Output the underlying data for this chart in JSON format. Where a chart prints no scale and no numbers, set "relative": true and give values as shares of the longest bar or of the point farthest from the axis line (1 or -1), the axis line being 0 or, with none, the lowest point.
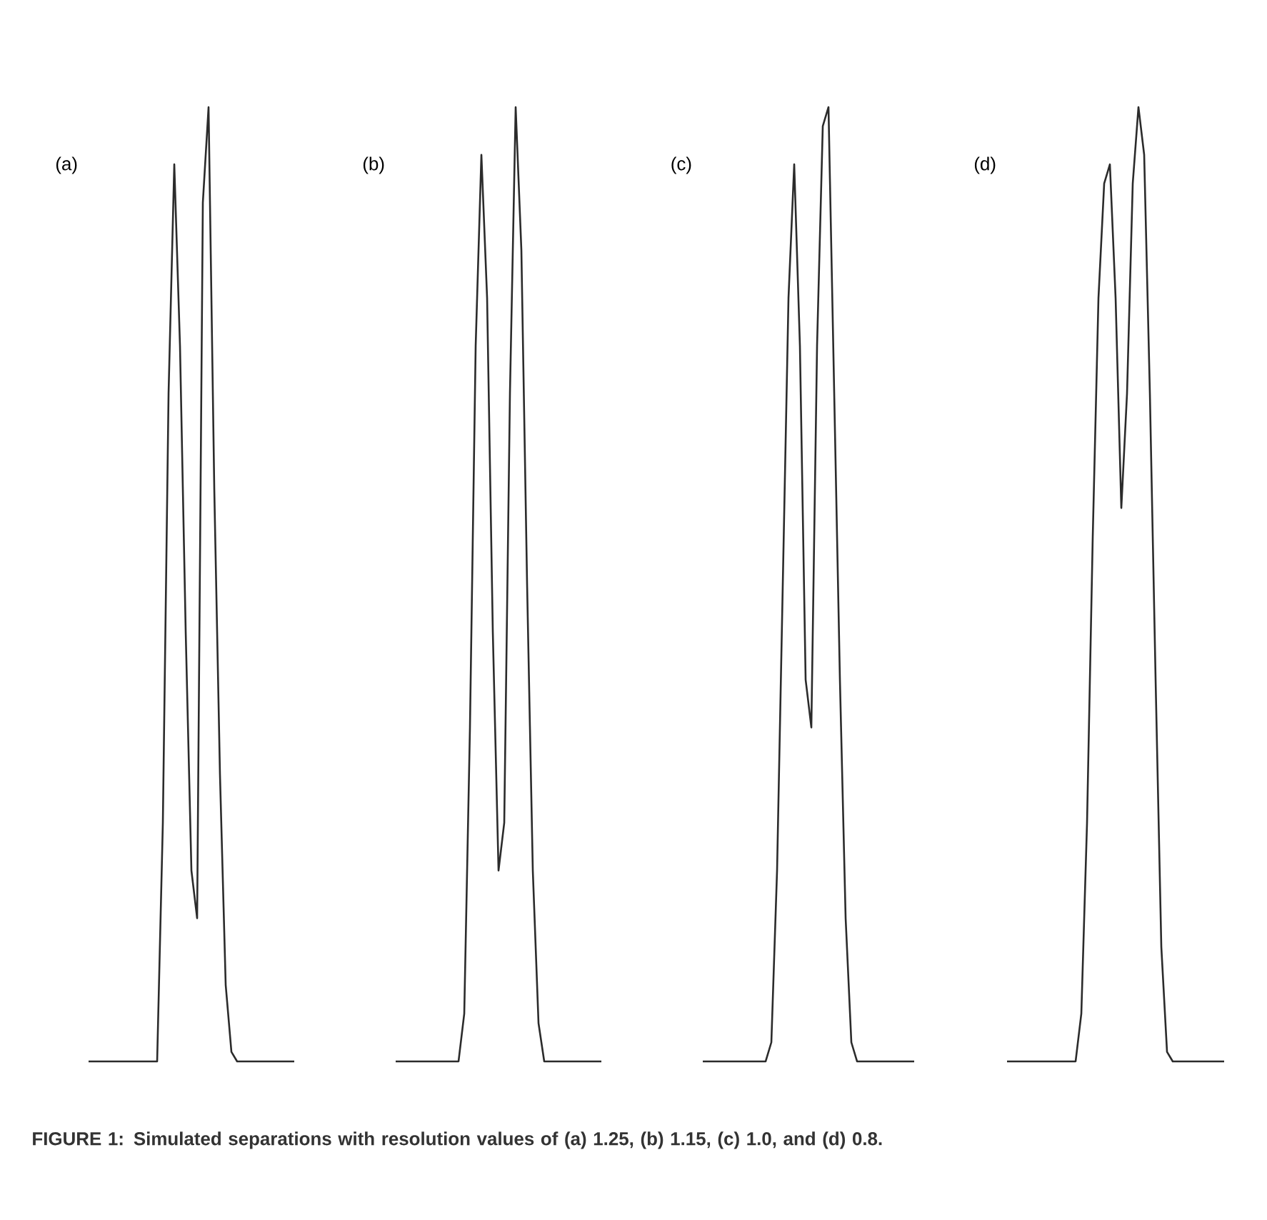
{
  "chart_data": [
    {
      "type": "line",
      "title": "(a)",
      "relative": true,
      "color": "#2b2b2b",
      "categories": [
        null,
        null,
        null,
        null,
        null,
        null,
        null,
        null,
        null,
        null,
        null,
        null,
        null,
        null,
        null,
        null,
        null,
        null,
        null,
        null,
        null,
        null,
        null,
        null,
        null,
        null,
        null,
        null,
        null,
        null,
        null,
        null,
        null,
        null,
        null,
        null,
        null
      ],
      "values": [
        0,
        0,
        0,
        0,
        0,
        0,
        0,
        0,
        0,
        0,
        0,
        0,
        0,
        0.25,
        0.7,
        0.94,
        0.75,
        0.45,
        0.2,
        0.15,
        0.9,
        1.0,
        0.6,
        0.3,
        0.08,
        0.01,
        0,
        0,
        0,
        0,
        0,
        0,
        0,
        0,
        0,
        0,
        0
      ],
      "annotations": [
        "**FIGURE 1:**  Simulated separations with resolution values of (a) 1.25, (b) 1.15, (c) 1.0, and (d) 0.8."
      ]
    },
    {
      "type": "line",
      "title": "(b)",
      "relative": true,
      "color": "#2b2b2b",
      "categories": [
        null,
        null,
        null,
        null,
        null,
        null,
        null,
        null,
        null,
        null,
        null,
        null,
        null,
        null,
        null,
        null,
        null,
        null,
        null,
        null,
        null,
        null,
        null,
        null,
        null,
        null,
        null,
        null,
        null,
        null,
        null,
        null,
        null,
        null,
        null,
        null,
        null
      ],
      "values": [
        0,
        0,
        0,
        0,
        0,
        0,
        0,
        0,
        0,
        0,
        0,
        0,
        0.05,
        0.35,
        0.75,
        0.95,
        0.8,
        0.45,
        0.2,
        0.25,
        0.7,
        1.0,
        0.85,
        0.5,
        0.2,
        0.04,
        0,
        0,
        0,
        0,
        0,
        0,
        0,
        0,
        0,
        0,
        0
      ]
    },
    {
      "type": "line",
      "title": "(c)",
      "relative": true,
      "color": "#2b2b2b",
      "categories": [
        null,
        null,
        null,
        null,
        null,
        null,
        null,
        null,
        null,
        null,
        null,
        null,
        null,
        null,
        null,
        null,
        null,
        null,
        null,
        null,
        null,
        null,
        null,
        null,
        null,
        null,
        null,
        null,
        null,
        null,
        null,
        null,
        null,
        null,
        null,
        null,
        null,
        null
      ],
      "values": [
        0,
        0,
        0,
        0,
        0,
        0,
        0,
        0,
        0,
        0,
        0,
        0,
        0.02,
        0.2,
        0.5,
        0.8,
        0.94,
        0.75,
        0.4,
        0.35,
        0.75,
        0.98,
        1.0,
        0.7,
        0.4,
        0.15,
        0.02,
        0,
        0,
        0,
        0,
        0,
        0,
        0,
        0,
        0,
        0,
        0
      ]
    },
    {
      "type": "line",
      "title": "(d)",
      "relative": true,
      "color": "#2b2b2b",
      "categories": [
        null,
        null,
        null,
        null,
        null,
        null,
        null,
        null,
        null,
        null,
        null,
        null,
        null,
        null,
        null,
        null,
        null,
        null,
        null,
        null,
        null,
        null,
        null,
        null,
        null,
        null,
        null,
        null,
        null,
        null,
        null,
        null,
        null,
        null,
        null,
        null,
        null,
        null,
        null
      ],
      "values": [
        0,
        0,
        0,
        0,
        0,
        0,
        0,
        0,
        0,
        0,
        0,
        0,
        0,
        0.05,
        0.25,
        0.55,
        0.8,
        0.92,
        0.94,
        0.8,
        0.58,
        0.7,
        0.92,
        1.0,
        0.95,
        0.7,
        0.4,
        0.12,
        0.01,
        0,
        0,
        0,
        0,
        0,
        0,
        0,
        0,
        0,
        0
      ]
    }
  ]
}
